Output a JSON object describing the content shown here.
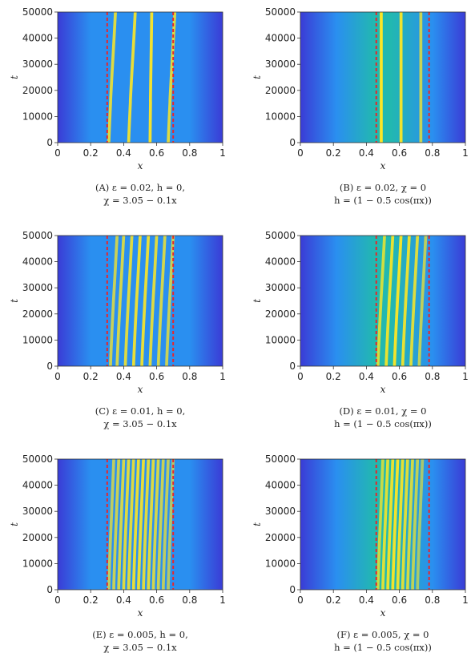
{
  "chart_data": [
    {
      "type": "heatmap",
      "panel": "A",
      "xlabel": "x",
      "ylabel": "t",
      "xlim": [
        0,
        1
      ],
      "ylim": [
        0,
        50000
      ],
      "xticks": [
        "0",
        "0.2",
        "0.4",
        "0.6",
        "0.8",
        "1"
      ],
      "yticks": [
        "0",
        "10000",
        "20000",
        "30000",
        "40000",
        "50000"
      ],
      "caption_line1": "(A) ε = 0.02, h = 0,",
      "caption_line2": "χ = 3.05 − 0.1x",
      "boundaries": [
        0.3,
        0.7
      ],
      "profile": "flat",
      "stripes": [
        {
          "x0": 0.31,
          "x1": 0.35,
          "bright": 0.85
        },
        {
          "x0": 0.43,
          "x1": 0.47,
          "bright": 0.9
        },
        {
          "x0": 0.56,
          "x1": 0.57,
          "bright": 0.95
        },
        {
          "x0": 0.67,
          "x1": 0.71,
          "bright": 0.85
        }
      ]
    },
    {
      "type": "heatmap",
      "panel": "B",
      "xlabel": "x",
      "ylabel": "t",
      "xlim": [
        0,
        1
      ],
      "ylim": [
        0,
        50000
      ],
      "xticks": [
        "0",
        "0.2",
        "0.4",
        "0.6",
        "0.8",
        "1"
      ],
      "yticks": [
        "0",
        "10000",
        "20000",
        "30000",
        "40000",
        "50000"
      ],
      "caption_line1": "(B) ε = 0.02, χ = 0",
      "caption_line2": "h = (1 − 0.5 cos(πx))",
      "boundaries": [
        0.46,
        0.78
      ],
      "profile": "bump",
      "stripes": [
        {
          "x0": 0.49,
          "x1": 0.49,
          "bright": 1.0
        },
        {
          "x0": 0.61,
          "x1": 0.61,
          "bright": 0.95
        },
        {
          "x0": 0.73,
          "x1": 0.73,
          "bright": 0.75
        }
      ]
    },
    {
      "type": "heatmap",
      "panel": "C",
      "xlabel": "x",
      "ylabel": "t",
      "xlim": [
        0,
        1
      ],
      "ylim": [
        0,
        50000
      ],
      "xticks": [
        "0",
        "0.2",
        "0.4",
        "0.6",
        "0.8",
        "1"
      ],
      "yticks": [
        "0",
        "10000",
        "20000",
        "30000",
        "40000",
        "50000"
      ],
      "caption_line1": "(C) ε = 0.01, h = 0,",
      "caption_line2": "χ = 3.05 − 0.1x",
      "boundaries": [
        0.3,
        0.7
      ],
      "profile": "flat",
      "stripes": [
        {
          "x0": 0.32,
          "x1": 0.36,
          "bright": 0.75
        },
        {
          "x0": 0.36,
          "x1": 0.4,
          "bright": 0.8
        },
        {
          "x0": 0.41,
          "x1": 0.45,
          "bright": 0.85
        },
        {
          "x0": 0.46,
          "x1": 0.5,
          "bright": 0.9
        },
        {
          "x0": 0.51,
          "x1": 0.55,
          "bright": 0.9
        },
        {
          "x0": 0.56,
          "x1": 0.6,
          "bright": 0.85
        },
        {
          "x0": 0.61,
          "x1": 0.65,
          "bright": 0.8
        },
        {
          "x0": 0.66,
          "x1": 0.7,
          "bright": 0.75
        }
      ]
    },
    {
      "type": "heatmap",
      "panel": "D",
      "xlabel": "x",
      "ylabel": "t",
      "xlim": [
        0,
        1
      ],
      "ylim": [
        0,
        50000
      ],
      "xticks": [
        "0",
        "0.2",
        "0.4",
        "0.6",
        "0.8",
        "1"
      ],
      "yticks": [
        "0",
        "10000",
        "20000",
        "30000",
        "40000",
        "50000"
      ],
      "caption_line1": "(D) ε = 0.01, χ = 0",
      "caption_line2": "h = (1 − 0.5 cos(πx))",
      "boundaries": [
        0.46,
        0.78
      ],
      "profile": "bump",
      "stripes": [
        {
          "x0": 0.47,
          "x1": 0.51,
          "bright": 0.8
        },
        {
          "x0": 0.52,
          "x1": 0.56,
          "bright": 0.9
        },
        {
          "x0": 0.57,
          "x1": 0.61,
          "bright": 0.95
        },
        {
          "x0": 0.62,
          "x1": 0.66,
          "bright": 0.9
        },
        {
          "x0": 0.67,
          "x1": 0.71,
          "bright": 0.85
        },
        {
          "x0": 0.72,
          "x1": 0.76,
          "bright": 0.7
        }
      ]
    },
    {
      "type": "heatmap",
      "panel": "E",
      "xlabel": "x",
      "ylabel": "t",
      "xlim": [
        0,
        1
      ],
      "ylim": [
        0,
        50000
      ],
      "xticks": [
        "0",
        "0.2",
        "0.4",
        "0.6",
        "0.8",
        "1"
      ],
      "yticks": [
        "0",
        "10000",
        "20000",
        "30000",
        "40000",
        "50000"
      ],
      "caption_line1": "(E) ε = 0.005, h = 0,",
      "caption_line2": "χ = 3.05 − 0.1x",
      "boundaries": [
        0.3,
        0.7
      ],
      "profile": "flat",
      "stripes": [
        {
          "x0": 0.31,
          "x1": 0.34,
          "bright": 0.7
        },
        {
          "x0": 0.34,
          "x1": 0.37,
          "bright": 0.75
        },
        {
          "x0": 0.37,
          "x1": 0.4,
          "bright": 0.8
        },
        {
          "x0": 0.4,
          "x1": 0.43,
          "bright": 0.85
        },
        {
          "x0": 0.43,
          "x1": 0.46,
          "bright": 0.85
        },
        {
          "x0": 0.46,
          "x1": 0.49,
          "bright": 0.9
        },
        {
          "x0": 0.49,
          "x1": 0.52,
          "bright": 0.9
        },
        {
          "x0": 0.52,
          "x1": 0.55,
          "bright": 0.85
        },
        {
          "x0": 0.55,
          "x1": 0.58,
          "bright": 0.85
        },
        {
          "x0": 0.58,
          "x1": 0.61,
          "bright": 0.8
        },
        {
          "x0": 0.61,
          "x1": 0.64,
          "bright": 0.75
        },
        {
          "x0": 0.64,
          "x1": 0.67,
          "bright": 0.7
        },
        {
          "x0": 0.67,
          "x1": 0.7,
          "bright": 0.65
        }
      ]
    },
    {
      "type": "heatmap",
      "panel": "F",
      "xlabel": "x",
      "ylabel": "t",
      "xlim": [
        0,
        1
      ],
      "ylim": [
        0,
        50000
      ],
      "xticks": [
        "0",
        "0.2",
        "0.4",
        "0.6",
        "0.8",
        "1"
      ],
      "yticks": [
        "0",
        "10000",
        "20000",
        "30000",
        "40000",
        "50000"
      ],
      "caption_line1": "(F) ε = 0.005, χ = 0",
      "caption_line2": "h = (1 − 0.5 cos(πx))",
      "boundaries": [
        0.46,
        0.78
      ],
      "profile": "bump",
      "stripes": [
        {
          "x0": 0.47,
          "x1": 0.5,
          "bright": 0.75
        },
        {
          "x0": 0.5,
          "x1": 0.53,
          "bright": 0.85
        },
        {
          "x0": 0.53,
          "x1": 0.56,
          "bright": 0.9
        },
        {
          "x0": 0.56,
          "x1": 0.59,
          "bright": 0.95
        },
        {
          "x0": 0.59,
          "x1": 0.62,
          "bright": 0.9
        },
        {
          "x0": 0.62,
          "x1": 0.65,
          "bright": 0.85
        },
        {
          "x0": 0.65,
          "x1": 0.68,
          "bright": 0.8
        },
        {
          "x0": 0.68,
          "x1": 0.71,
          "bright": 0.7
        },
        {
          "x0": 0.71,
          "x1": 0.74,
          "bright": 0.6
        }
      ]
    }
  ],
  "colors": {
    "background_edge": "#3a3cd6",
    "background_mid": "#2a8ff0",
    "bump_center": "#22b8b0",
    "stripe_peak": "#fde725",
    "stripe_mid": "#4cd08a",
    "boundary_line": "#e8262b"
  }
}
